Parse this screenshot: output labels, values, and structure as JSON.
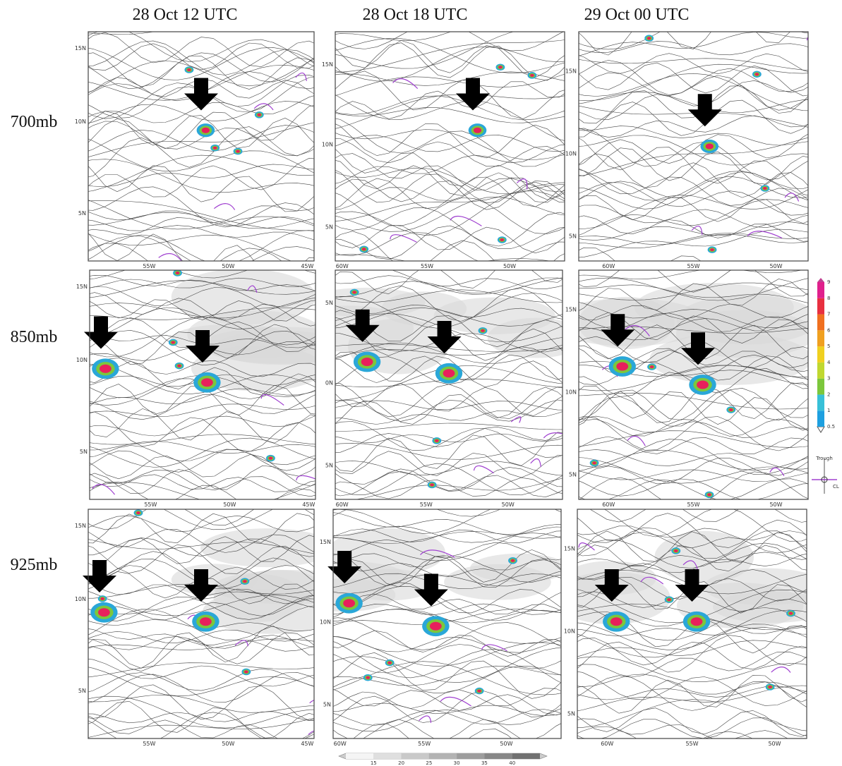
{
  "columns": [
    "28 Oct 12 UTC",
    "28 Oct 18 UTC",
    "29 Oct 00 UTC"
  ],
  "rows": [
    "700mb",
    "850mb",
    "925mb"
  ],
  "panels": [
    {
      "lat": [
        "15N",
        "10N",
        "5N"
      ],
      "lon": [
        "55W",
        "50W",
        "45W"
      ]
    },
    {
      "lat": [
        "15N",
        "10N",
        "5N"
      ],
      "lon": [
        "60W",
        "55W",
        "50W"
      ]
    },
    {
      "lat": [
        "15N",
        "10N",
        "5N"
      ],
      "lon": [
        "60W",
        "55W",
        "50W"
      ]
    },
    {
      "lat": [
        "15N",
        "10N",
        "5N"
      ],
      "lon": [
        "55W",
        "50W",
        "45W"
      ]
    },
    {
      "lat": [
        "5N",
        "0N",
        "5N"
      ],
      "lon": [
        "60W",
        "55W",
        "50W"
      ]
    },
    {
      "lat": [
        "15N",
        "10N",
        "5N"
      ],
      "lon": [
        "60W",
        "55W",
        "50W"
      ]
    },
    {
      "lat": [
        "15N",
        "10N",
        "5N"
      ],
      "lon": [
        "55W",
        "50W",
        "45W"
      ]
    },
    {
      "lat": [
        "15N",
        "10N",
        "5N"
      ],
      "lon": [
        "60W",
        "55W",
        "50W"
      ]
    },
    {
      "lat": [
        "15N",
        "10N",
        "5N"
      ],
      "lon": [
        "60W",
        "55W",
        "50W"
      ]
    }
  ],
  "vorticity_colorbar": [
    "0.5",
    "1",
    "2",
    "3",
    "4",
    "5",
    "6",
    "7",
    "8",
    "9"
  ],
  "shading_colorbar": [
    "15",
    "20",
    "25",
    "30",
    "35",
    "40"
  ],
  "legend": {
    "trough": "Trough",
    "cl": "CL"
  }
}
